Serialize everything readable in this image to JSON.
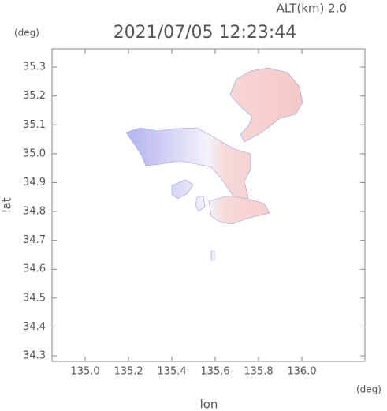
{
  "chart_data": {
    "type": "map",
    "annotation": "ALT(km) 2.0",
    "title": "2021/07/05 12:23:44",
    "x_label": "lon",
    "y_label": "lat",
    "x_unit": "(deg)",
    "y_unit": "(deg)",
    "xlim": [
      134.847,
      136.291
    ],
    "ylim": [
      34.281,
      35.363
    ],
    "xticks": [
      {
        "value": 135,
        "label": "135.0"
      },
      135.2,
      135.4,
      135.6,
      135.8,
      {
        "value": 136,
        "label": "136.0"
      }
    ],
    "yticks": [
      34.3,
      34.4,
      34.5,
      34.6,
      34.7,
      34.8,
      34.9,
      {
        "value": 35,
        "label": "35.0"
      },
      35.1,
      35.2,
      35.3
    ]
  }
}
